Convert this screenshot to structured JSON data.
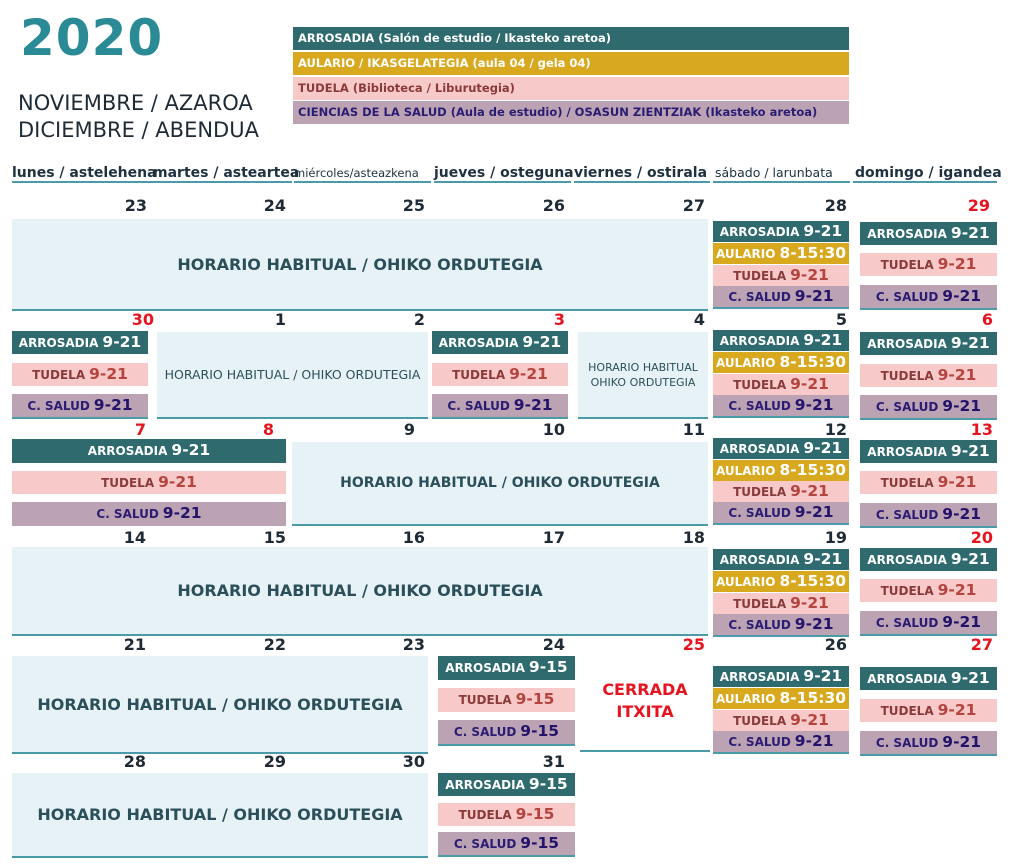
{
  "header": {
    "year": "2020",
    "month_line1": "NOVIEMBRE / AZAROA",
    "month_line2": "DICIEMBRE / ABENDUA"
  },
  "legend": {
    "arrosadia": "ARROSADIA (Salón de estudio / Ikasteko aretoa)",
    "aulario": "AULARIO / IKASGELATEGIA (aula 04 / gela 04)",
    "tudela": "TUDELA (Biblioteca / Liburutegia)",
    "salud": "CIENCIAS DE LA SALUD (Aula de estudio) / OSASUN ZIENTZIAK (Ikasteko aretoa)"
  },
  "weekdays": [
    "lunes / astelehena",
    "martes / asteartea",
    "miércoles/asteazkena",
    "jueves / osteguna",
    "viernes / ostirala",
    "sábado / larunbata",
    "domingo / igandea"
  ],
  "labels": {
    "habitual": "HORARIO HABITUAL / OHIKO ORDUTEGIA",
    "habitual_line1": "HORARIO HABITUAL",
    "habitual_line2": "OHIKO ORDUTEGIA",
    "arrosadia": "ARROSADIA",
    "aulario": "AULARIO",
    "tudela": "TUDELA",
    "salud": "C. SALUD",
    "cerrada": "CERRADA",
    "itxita": "ITXITA"
  },
  "hours": {
    "full": "9-21",
    "aulario": "8-15:30",
    "short": "9-15"
  },
  "colors": {
    "arrosadia": "#2e6a6e",
    "aulario": "#d8a91e",
    "tudela": "#f7c9c9",
    "salud": "#bca3b4",
    "habitual": "#e6f2f5",
    "holiday": "#e5141e",
    "year": "#2a8a95"
  },
  "weeks": [
    [
      "23",
      "24",
      "25",
      "26",
      "27",
      "28",
      "29"
    ],
    [
      "30",
      "1",
      "2",
      "3",
      "4",
      "5",
      "6"
    ],
    [
      "7",
      "8",
      "9",
      "10",
      "11",
      "12",
      "13"
    ],
    [
      "14",
      "15",
      "16",
      "17",
      "18",
      "19",
      "20"
    ],
    [
      "21",
      "22",
      "23",
      "24",
      "25",
      "26",
      "27"
    ],
    [
      "28",
      "29",
      "30",
      "31"
    ]
  ]
}
